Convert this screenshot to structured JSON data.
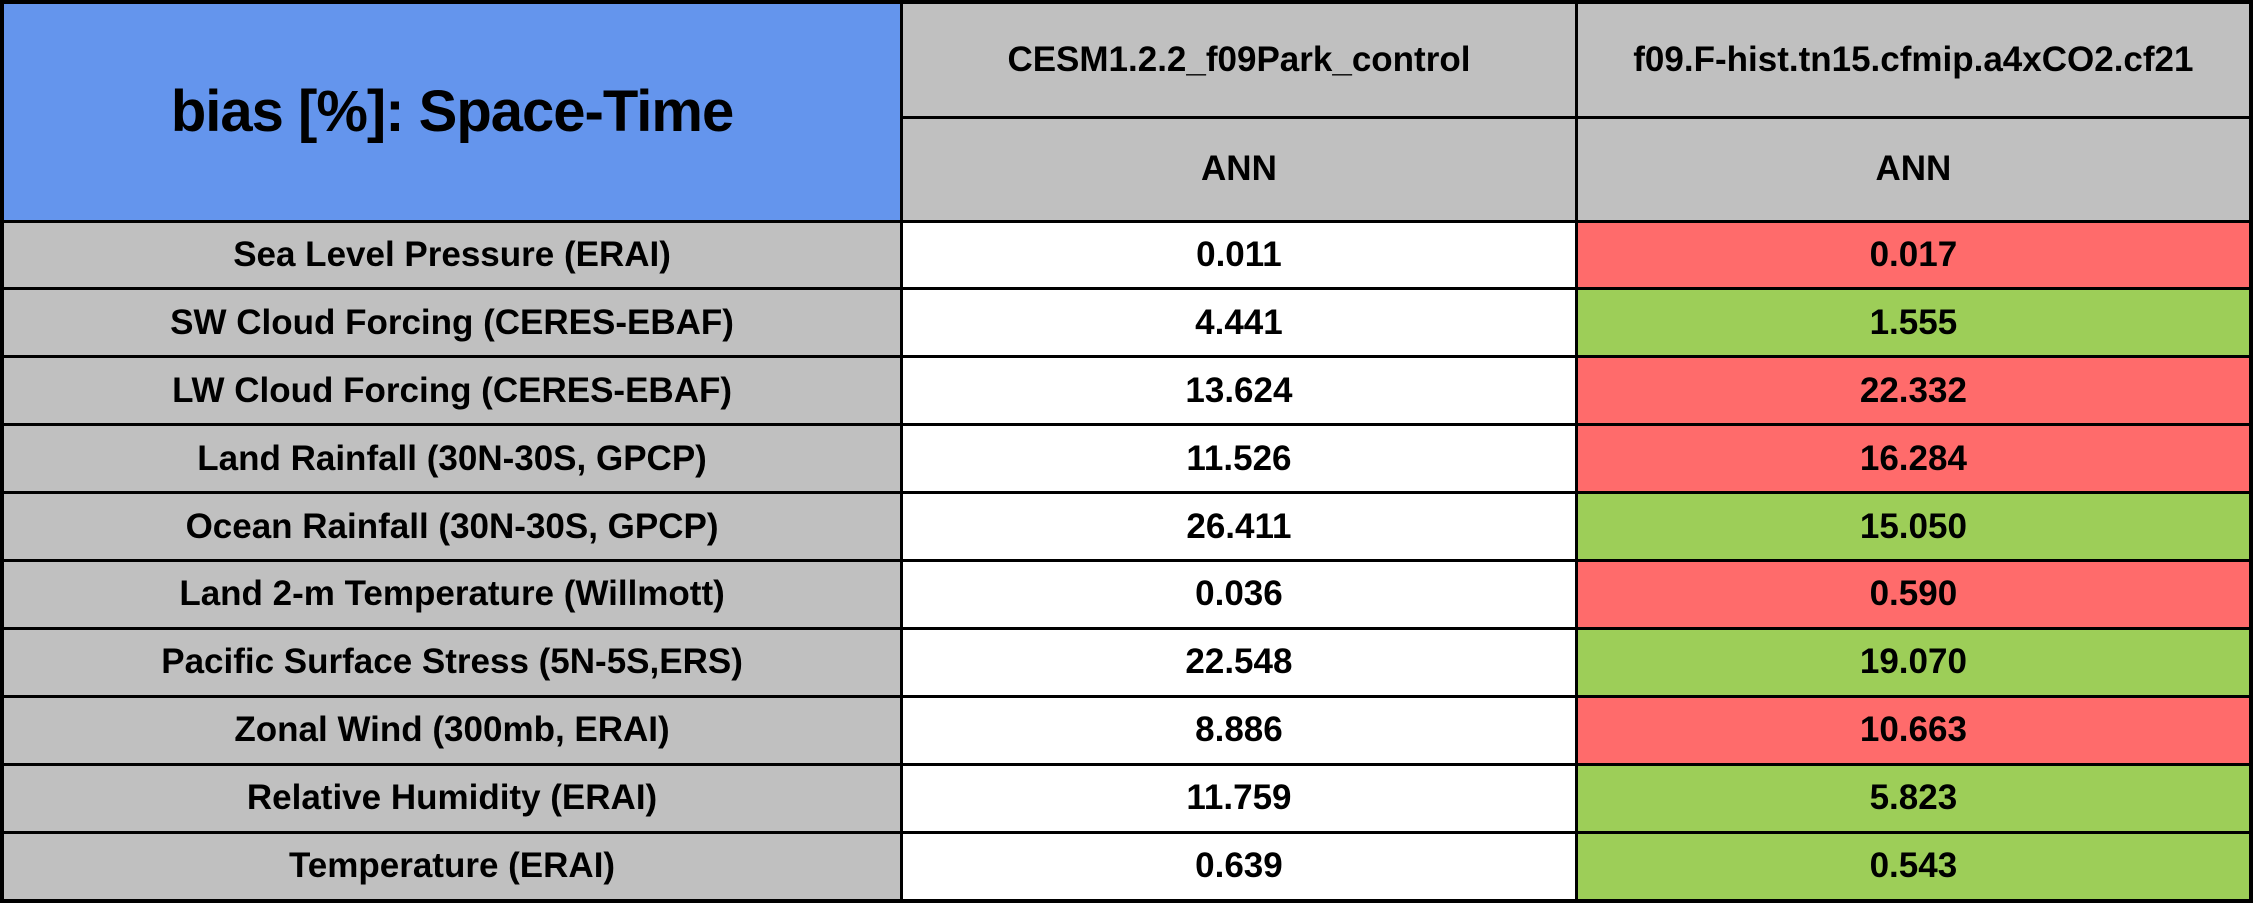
{
  "chart_data": {
    "type": "table",
    "title": "bias [%]: Space-Time",
    "header": {
      "models": [
        "CESM1.2.2_f09Park_control",
        "f09.F-hist.tn15.cfmip.a4xCO2.cf21"
      ],
      "seasons": [
        "ANN",
        "ANN"
      ]
    },
    "categories": [
      "Sea Level Pressure (ERAI)",
      "SW Cloud Forcing (CERES-EBAF)",
      "LW Cloud Forcing (CERES-EBAF)",
      "Land Rainfall (30N-30S, GPCP)",
      "Ocean Rainfall (30N-30S, GPCP)",
      "Land 2-m Temperature (Willmott)",
      "Pacific Surface Stress (5N-5S,ERS)",
      "Zonal Wind (300mb, ERAI)",
      "Relative Humidity (ERAI)",
      "Temperature (ERAI)"
    ],
    "series": [
      {
        "name": "CESM1.2.2_f09Park_control",
        "season": "ANN",
        "values": [
          0.011,
          4.441,
          13.624,
          11.526,
          26.411,
          0.036,
          22.548,
          8.886,
          11.759,
          0.639
        ]
      },
      {
        "name": "f09.F-hist.tn15.cfmip.a4xCO2.cf21",
        "season": "ANN",
        "values": [
          0.017,
          1.555,
          22.332,
          16.284,
          15.05,
          0.59,
          19.07,
          10.663,
          5.823,
          0.543
        ],
        "cell_flags": [
          "worse",
          "better",
          "worse",
          "worse",
          "better",
          "worse",
          "better",
          "worse",
          "better",
          "better"
        ]
      }
    ],
    "rows": [
      {
        "label": "Sea Level Pressure (ERAI)",
        "control": "0.011",
        "test": "0.017",
        "flag": "worse"
      },
      {
        "label": "SW Cloud Forcing (CERES-EBAF)",
        "control": "4.441",
        "test": "1.555",
        "flag": "better"
      },
      {
        "label": "LW Cloud Forcing (CERES-EBAF)",
        "control": "13.624",
        "test": "22.332",
        "flag": "worse"
      },
      {
        "label": "Land Rainfall (30N-30S, GPCP)",
        "control": "11.526",
        "test": "16.284",
        "flag": "worse"
      },
      {
        "label": "Ocean Rainfall (30N-30S, GPCP)",
        "control": "26.411",
        "test": "15.050",
        "flag": "better"
      },
      {
        "label": "Land 2-m Temperature (Willmott)",
        "control": "0.036",
        "test": "0.590",
        "flag": "worse"
      },
      {
        "label": "Pacific Surface Stress (5N-5S,ERS)",
        "control": "22.548",
        "test": "19.070",
        "flag": "better"
      },
      {
        "label": "Zonal Wind (300mb, ERAI)",
        "control": "8.886",
        "test": "10.663",
        "flag": "worse"
      },
      {
        "label": "Relative Humidity (ERAI)",
        "control": "11.759",
        "test": "5.823",
        "flag": "better"
      },
      {
        "label": "Temperature (ERAI)",
        "control": "0.639",
        "test": "0.543",
        "flag": "better"
      }
    ],
    "colors": {
      "title_bg": "#6495ED",
      "header_bg": "#C0C0C0",
      "control_bg": "#FFFFFF",
      "worse": "#FF6B6B",
      "better": "#9DCE58",
      "border": "#000000",
      "text": "#000000"
    },
    "layout": {
      "grid": true,
      "legend": "none"
    }
  }
}
